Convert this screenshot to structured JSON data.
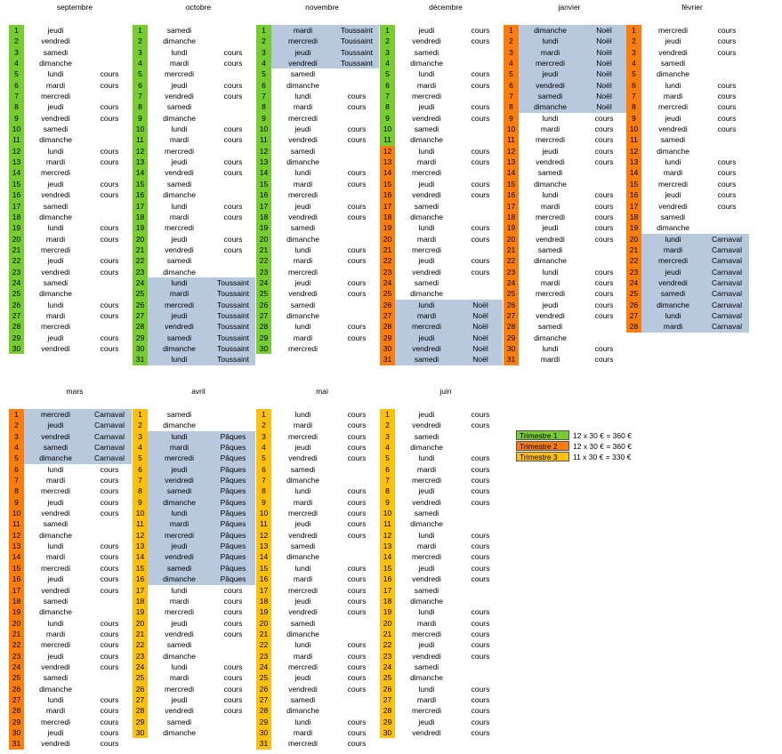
{
  "colors": {
    "Trimestre 1": "#76cc30",
    "Trimestre 2": "#fa7d10",
    "Trimestre 3": "#fec010",
    "holiday": "#b8c9de"
  },
  "months": [
    {
      "name": "septembre",
      "trimester": "Trimestre 1",
      "start": "jeudi",
      "days": 30,
      "notes": {
        "5": "cours",
        "6": "cours",
        "8": "cours",
        "9": "cours",
        "12": "cours",
        "13": "cours",
        "15": "cours",
        "16": "cours",
        "19": "cours",
        "20": "cours",
        "22": "cours",
        "23": "cours",
        "26": "cours",
        "27": "cours",
        "29": "cours",
        "30": "cours"
      }
    },
    {
      "name": "octobre",
      "trimester": "Trimestre 1",
      "start": "samedi",
      "days": 31,
      "notes": {
        "3": "cours",
        "4": "cours",
        "6": "cours",
        "7": "cours",
        "10": "cours",
        "11": "cours",
        "13": "cours",
        "14": "cours",
        "17": "cours",
        "18": "cours",
        "20": "cours",
        "21": "cours",
        "24": "Toussaint",
        "25": "Toussaint",
        "26": "Toussaint",
        "27": "Toussaint",
        "28": "Toussaint",
        "29": "Toussaint",
        "30": "Toussaint",
        "31": "Toussaint"
      }
    },
    {
      "name": "novembre",
      "trimester": "Trimestre 1",
      "start": "mardi",
      "days": 30,
      "notes": {
        "1": "Toussaint",
        "2": "Toussaint",
        "3": "Toussaint",
        "4": "Toussaint",
        "7": "cours",
        "8": "cours",
        "10": "cours",
        "11": "cours",
        "14": "cours",
        "15": "cours",
        "17": "cours",
        "18": "cours",
        "21": "cours",
        "22": "cours",
        "24": "cours",
        "25": "cours",
        "28": "cours",
        "29": "cours"
      }
    },
    {
      "name": "décembre",
      "trimester": "Trimestre 1",
      "trimester_from": 12,
      "trimester_after": "Trimestre 2",
      "start": "jeudi",
      "days": 31,
      "notes": {
        "1": "cours",
        "2": "cours",
        "5": "cours",
        "6": "cours",
        "8": "cours",
        "9": "cours",
        "12": "cours",
        "13": "cours",
        "15": "cours",
        "16": "cours",
        "19": "cours",
        "20": "cours",
        "22": "cours",
        "23": "cours",
        "26": "Noël",
        "27": "Noël",
        "28": "Noël",
        "29": "Noël",
        "30": "Noël",
        "31": "Noël"
      }
    },
    {
      "name": "janvier",
      "trimester": "Trimestre 2",
      "start": "dimanche",
      "days": 31,
      "notes": {
        "1": "Noël",
        "2": "Noël",
        "3": "Noël",
        "4": "Noël",
        "5": "Noël",
        "6": "Noël",
        "7": "Noël",
        "8": "Noël",
        "9": "cours",
        "10": "cours",
        "11": "cours",
        "12": "cours",
        "13": "cours",
        "16": "cours",
        "17": "cours",
        "18": "cours",
        "19": "cours",
        "20": "cours",
        "23": "cours",
        "24": "cours",
        "25": "cours",
        "26": "cours",
        "27": "cours",
        "30": "cours",
        "31": "cours"
      }
    },
    {
      "name": "février",
      "trimester": "Trimestre 2",
      "start": "mercredi",
      "days": 28,
      "notes": {
        "1": "cours",
        "2": "cours",
        "3": "cours",
        "6": "cours",
        "7": "cours",
        "8": "cours",
        "9": "cours",
        "10": "cours",
        "13": "cours",
        "14": "cours",
        "15": "cours",
        "16": "cours",
        "17": "cours",
        "20": "Carnaval",
        "21": "Carnaval",
        "22": "Carnaval",
        "23": "Carnaval",
        "24": "Carnaval",
        "25": "Carnaval",
        "26": "Carnaval",
        "27": "Carnaval",
        "28": "Carnaval"
      }
    },
    {
      "name": "mars",
      "trimester": "Trimestre 2",
      "start": "mercredi",
      "days": 31,
      "notes": {
        "1": "Carnaval",
        "2": "Carnaval",
        "3": "Carnaval",
        "4": "Carnaval",
        "5": "Carnaval",
        "6": "cours",
        "7": "cours",
        "8": "cours",
        "9": "cours",
        "10": "cours",
        "13": "cours",
        "14": "cours",
        "15": "cours",
        "16": "cours",
        "17": "cours",
        "20": "cours",
        "21": "cours",
        "22": "cours",
        "23": "cours",
        "24": "cours",
        "27": "cours",
        "28": "cours",
        "29": "cours",
        "30": "cours",
        "31": "cours"
      }
    },
    {
      "name": "avril",
      "trimester": "Trimestre 3",
      "start": "samedi",
      "days": 30,
      "notes": {
        "3": "Pâques",
        "4": "Pâques",
        "5": "Pâques",
        "6": "Pâques",
        "7": "Pâques",
        "8": "Pâques",
        "9": "Pâques",
        "10": "Pâques",
        "11": "Pâques",
        "12": "Pâques",
        "13": "Pâques",
        "14": "Pâques",
        "15": "Pâques",
        "16": "Pâques",
        "17": "cours",
        "18": "cours",
        "19": "cours",
        "20": "cours",
        "21": "cours",
        "24": "cours",
        "25": "cours",
        "26": "cours",
        "27": "cours",
        "28": "cours"
      }
    },
    {
      "name": "mai",
      "trimester": "Trimestre 3",
      "start": "lundi",
      "days": 31,
      "notes": {
        "1": "cours",
        "2": "cours",
        "3": "cours",
        "4": "cours",
        "5": "cours",
        "8": "cours",
        "9": "cours",
        "10": "cours",
        "11": "cours",
        "12": "cours",
        "15": "cours",
        "16": "cours",
        "17": "cours",
        "18": "cours",
        "19": "cours",
        "22": "cours",
        "23": "cours",
        "24": "cours",
        "25": "cours",
        "26": "cours",
        "29": "cours",
        "30": "cours",
        "31": "cours"
      }
    },
    {
      "name": "juin",
      "trimester": "Trimestre 3",
      "start": "jeudi",
      "days": 30,
      "notes": {
        "1": "cours",
        "2": "cours",
        "5": "cours",
        "6": "cours",
        "7": "cours",
        "8": "cours",
        "9": "cours",
        "12": "cours",
        "13": "cours",
        "14": "cours",
        "15": "cours",
        "16": "cours",
        "19": "cours",
        "20": "cours",
        "21": "cours",
        "22": "cours",
        "23": "cours",
        "26": "cours",
        "27": "cours",
        "28": "cours",
        "29": "cours",
        "30": "cours"
      }
    }
  ],
  "weekdays": [
    "lundi",
    "mardi",
    "mercredi",
    "jeudi",
    "vendredi",
    "samedi",
    "dimanche"
  ],
  "holidays": [
    "Toussaint",
    "Noël",
    "Carnaval",
    "Pâques"
  ],
  "legend": [
    {
      "label": "Trimestre 1",
      "text": "12 x 30 € = 360 €"
    },
    {
      "label": "Trimestre 2",
      "text": "12 x 30 € = 360 €"
    },
    {
      "label": "Trimestre 3",
      "text": "11 x 30 € = 330 €"
    }
  ]
}
